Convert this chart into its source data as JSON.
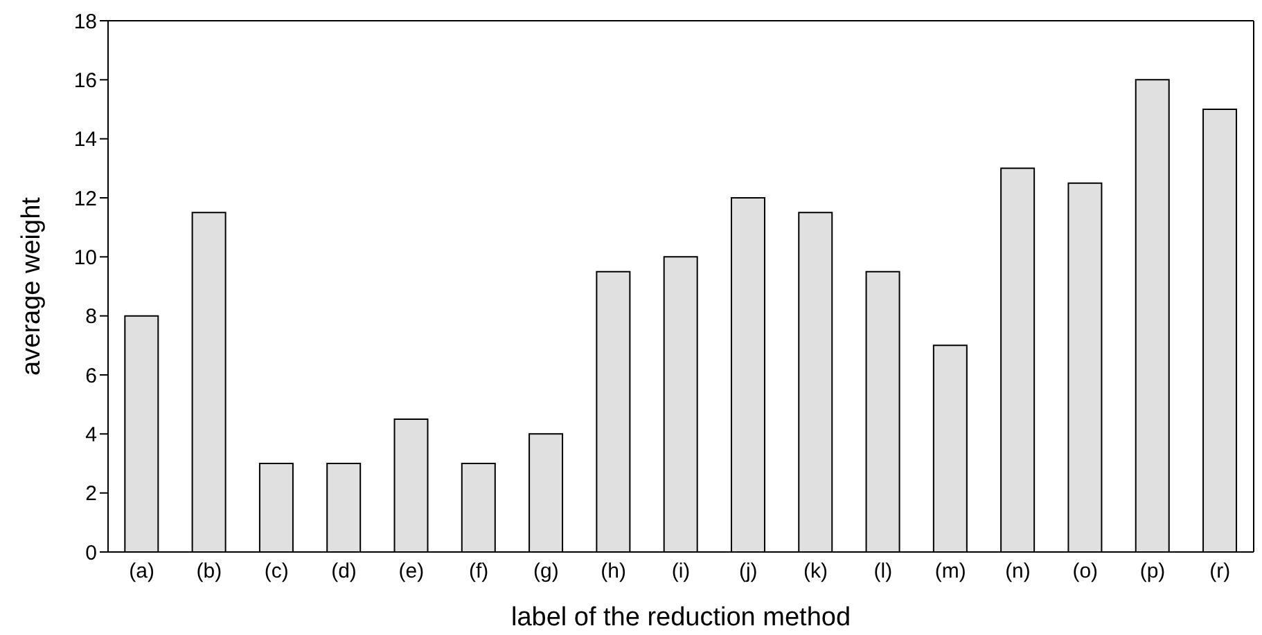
{
  "chart_data": {
    "type": "bar",
    "xlabel": "label of the reduction method",
    "ylabel": "average weight",
    "categories": [
      "(a)",
      "(b)",
      "(c)",
      "(d)",
      "(e)",
      "(f)",
      "(g)",
      "(h)",
      "(i)",
      "(j)",
      "(k)",
      "(l)",
      "(m)",
      "(n)",
      "(o)",
      "(p)",
      "(r)"
    ],
    "values": [
      8,
      11.5,
      3,
      3,
      4.5,
      3,
      4,
      9.5,
      10,
      12,
      11.5,
      9.5,
      7,
      13,
      12.5,
      16,
      15
    ],
    "color": "#e0e0e0",
    "ylim": [
      0,
      18
    ],
    "yticks": [
      0,
      2,
      4,
      6,
      8,
      10,
      12,
      14,
      16,
      18
    ],
    "grid": false,
    "legend": false
  }
}
